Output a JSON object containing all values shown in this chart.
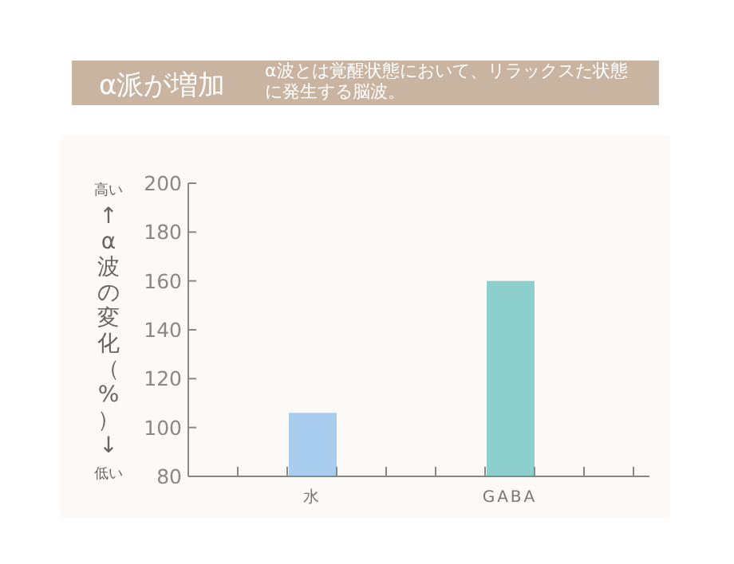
{
  "chart_data": {
    "type": "bar",
    "title": "α派が増加",
    "subtitle": "α波とは覚醒状態において、リラックスた状態に発生する脳波。",
    "ylabel": "↑α波の変化（%）↓",
    "annotations": [
      "高い",
      "低い"
    ],
    "categories": [
      null,
      null,
      "水",
      null,
      null,
      null,
      "GABA",
      null,
      null
    ],
    "values": [
      null,
      null,
      106,
      null,
      null,
      null,
      160,
      null,
      null
    ],
    "colors": [
      null,
      null,
      "#a9cdee",
      null,
      null,
      null,
      "#8dcfcb",
      null,
      null
    ],
    "ylim": [
      80,
      200
    ],
    "yticks": [
      80,
      100,
      120,
      140,
      160,
      180,
      200
    ],
    "grid": false
  }
}
